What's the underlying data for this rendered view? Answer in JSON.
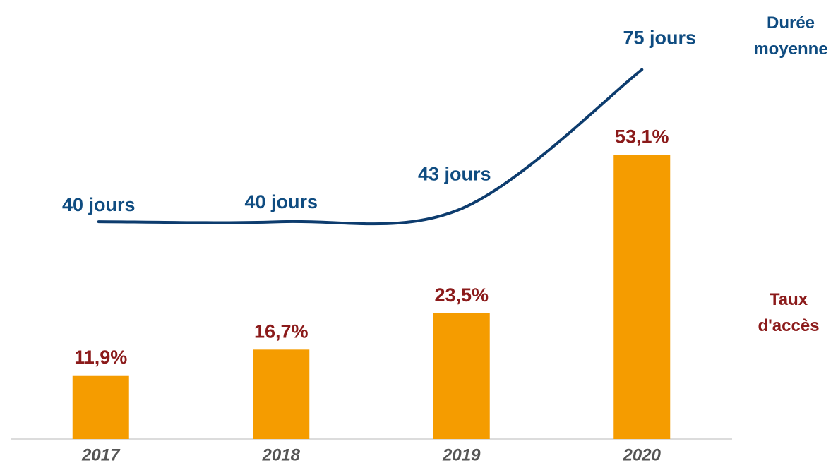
{
  "chart_data": {
    "type": "bar",
    "categories": [
      "2017",
      "2018",
      "2019",
      "2020"
    ],
    "series": [
      {
        "name": "Taux d'accès",
        "type": "bar",
        "color": "#f59c00",
        "label_color": "#8b1a1a",
        "values": [
          11.9,
          16.7,
          23.5,
          53.1
        ],
        "value_labels": [
          "11,9%",
          "16,7%",
          "23,5%",
          "53,1%"
        ]
      },
      {
        "name": "Durée moyenne",
        "type": "line",
        "axis": "y2",
        "color": "#0d3c6e",
        "label_color": "#0f4c81",
        "values": [
          40,
          40,
          43,
          75
        ],
        "value_labels": [
          "40 jours",
          "40 jours",
          "43 jours",
          "75 jours"
        ]
      }
    ],
    "ylim": [
      0,
      82
    ],
    "y2lim": [
      -10,
      91
    ]
  }
}
